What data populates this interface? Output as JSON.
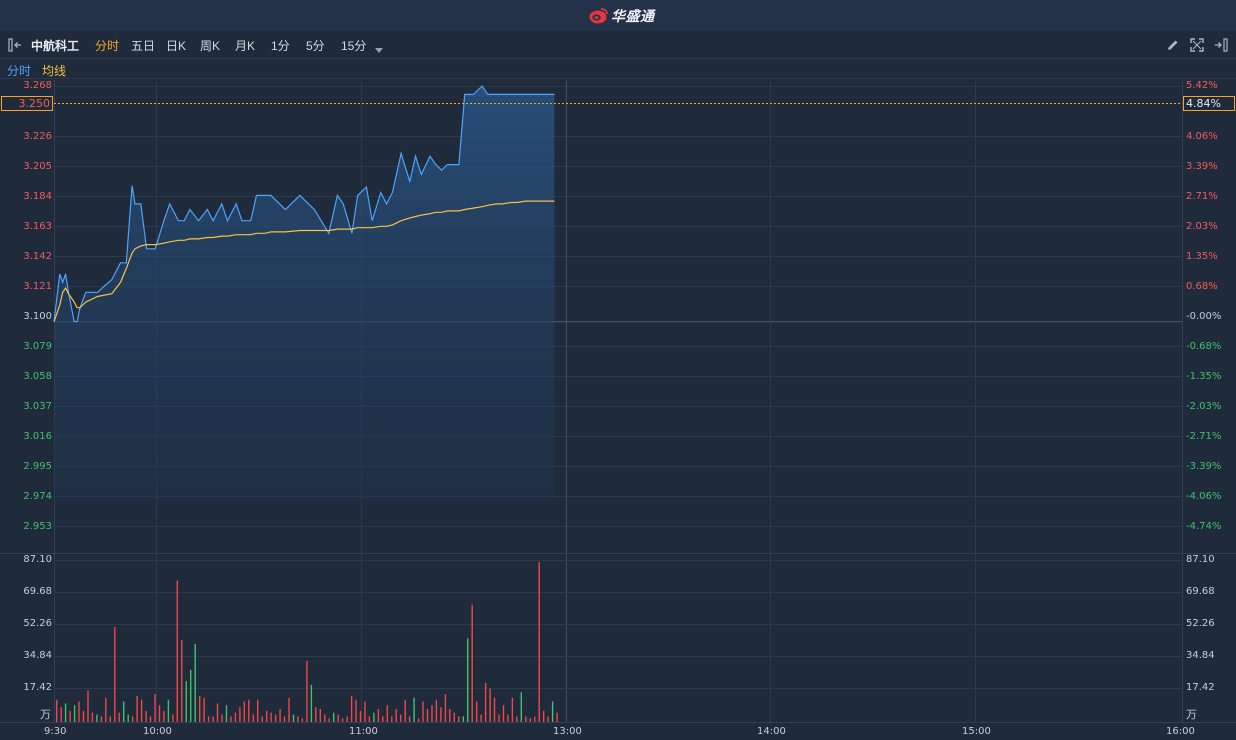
{
  "brand": {
    "name": "华盛通"
  },
  "toolbar": {
    "stock_name": "中航科工",
    "tabs": [
      {
        "label": "分时",
        "active": true
      },
      {
        "label": "五日",
        "active": false
      },
      {
        "label": "日K",
        "active": false
      },
      {
        "label": "周K",
        "active": false
      },
      {
        "label": "月K",
        "active": false
      },
      {
        "label": "1分",
        "active": false
      },
      {
        "label": "5分",
        "active": false
      },
      {
        "label": "15分",
        "active": false
      }
    ]
  },
  "legend": {
    "intraday": "分时",
    "avg": "均线",
    "intraday_color": "#4da3ff",
    "avg_color": "#f6c342"
  },
  "crosshair": {
    "price": "3.250",
    "pct": "4.84%"
  },
  "price_axis": {
    "left": [
      "3.268",
      "3.226",
      "3.205",
      "3.184",
      "3.163",
      "3.142",
      "3.121",
      "3.100",
      "3.079",
      "3.058",
      "3.037",
      "3.016",
      "2.995",
      "2.974",
      "2.953"
    ],
    "right": [
      "5.42%",
      "4.06%",
      "3.39%",
      "2.71%",
      "2.03%",
      "1.35%",
      "0.68%",
      "-0.00%",
      "-0.68%",
      "-1.35%",
      "-2.03%",
      "-2.71%",
      "-3.39%",
      "-4.06%",
      "-4.74%"
    ]
  },
  "volume_axis": {
    "labels": [
      "87.10",
      "69.68",
      "52.26",
      "34.84",
      "17.42"
    ],
    "unit": "万"
  },
  "time_axis": [
    "9:30",
    "10:00",
    "11:00",
    "13:00",
    "14:00",
    "15:00",
    "16:00"
  ],
  "chart_data": {
    "type": "line",
    "title": "",
    "prev_close": 3.1,
    "ylim": [
      2.953,
      3.268
    ],
    "volume_ylim": [
      0,
      87.1
    ],
    "x": [
      "09:30",
      "09:32",
      "09:33",
      "09:34",
      "09:35",
      "09:37",
      "09:38",
      "09:39",
      "09:41",
      "09:43",
      "09:45",
      "09:50",
      "09:53",
      "09:55",
      "09:57",
      "09:58",
      "10:00",
      "10:02",
      "10:05",
      "10:08",
      "10:10",
      "10:13",
      "10:15",
      "10:17",
      "10:20",
      "10:23",
      "10:25",
      "10:28",
      "10:30",
      "10:33",
      "10:35",
      "10:38",
      "10:40",
      "10:43",
      "10:45",
      "10:50",
      "10:55",
      "11:00",
      "11:05",
      "11:08",
      "11:10",
      "11:13",
      "11:15",
      "11:18",
      "11:20",
      "11:23",
      "11:25",
      "11:27",
      "11:30",
      "11:33",
      "11:35",
      "11:37",
      "11:40",
      "11:42",
      "11:44",
      "11:46",
      "11:48",
      "11:50",
      "11:52",
      "11:55",
      "11:58",
      "12:00",
      "12:03",
      "12:05",
      "12:08",
      "12:10",
      "12:13",
      "12:15",
      "12:17",
      "12:20",
      "12:23"
    ],
    "series": [
      {
        "name": "分时",
        "values": [
          3.1,
          3.134,
          3.128,
          3.134,
          3.121,
          3.1,
          3.1,
          3.11,
          3.121,
          3.121,
          3.121,
          3.13,
          3.142,
          3.142,
          3.197,
          3.184,
          3.184,
          3.152,
          3.152,
          3.172,
          3.184,
          3.172,
          3.172,
          3.18,
          3.172,
          3.18,
          3.172,
          3.184,
          3.172,
          3.184,
          3.172,
          3.172,
          3.19,
          3.19,
          3.19,
          3.18,
          3.19,
          3.18,
          3.163,
          3.19,
          3.184,
          3.163,
          3.19,
          3.196,
          3.172,
          3.192,
          3.184,
          3.192,
          3.22,
          3.2,
          3.218,
          3.205,
          3.218,
          3.212,
          3.208,
          3.212,
          3.212,
          3.212,
          3.262,
          3.262,
          3.268,
          3.262,
          3.262,
          3.262,
          3.262,
          3.262,
          3.262,
          3.262,
          3.262,
          3.262,
          3.262
        ]
      },
      {
        "name": "均线",
        "values": [
          3.1,
          3.112,
          3.121,
          3.124,
          3.12,
          3.114,
          3.11,
          3.11,
          3.114,
          3.116,
          3.118,
          3.12,
          3.128,
          3.138,
          3.149,
          3.152,
          3.154,
          3.155,
          3.155,
          3.156,
          3.157,
          3.158,
          3.158,
          3.159,
          3.159,
          3.16,
          3.16,
          3.161,
          3.161,
          3.162,
          3.162,
          3.162,
          3.163,
          3.163,
          3.164,
          3.164,
          3.165,
          3.165,
          3.165,
          3.166,
          3.166,
          3.166,
          3.167,
          3.167,
          3.167,
          3.168,
          3.168,
          3.169,
          3.172,
          3.174,
          3.175,
          3.176,
          3.177,
          3.178,
          3.178,
          3.179,
          3.179,
          3.179,
          3.18,
          3.181,
          3.182,
          3.183,
          3.184,
          3.184,
          3.185,
          3.185,
          3.186,
          3.186,
          3.186,
          3.186,
          3.186
        ]
      }
    ],
    "volume": [
      {
        "v": 12,
        "c": "r"
      },
      {
        "v": 8,
        "c": "r"
      },
      {
        "v": 10,
        "c": "g"
      },
      {
        "v": 6,
        "c": "r"
      },
      {
        "v": 9,
        "c": "g"
      },
      {
        "v": 11,
        "c": "r"
      },
      {
        "v": 6,
        "c": "r"
      },
      {
        "v": 17,
        "c": "r"
      },
      {
        "v": 5,
        "c": "r"
      },
      {
        "v": 4,
        "c": "g"
      },
      {
        "v": 3,
        "c": "r"
      },
      {
        "v": 13,
        "c": "r"
      },
      {
        "v": 3,
        "c": "r"
      },
      {
        "v": 51,
        "c": "r"
      },
      {
        "v": 5,
        "c": "r"
      },
      {
        "v": 11,
        "c": "g"
      },
      {
        "v": 4,
        "c": "g"
      },
      {
        "v": 3,
        "c": "r"
      },
      {
        "v": 14,
        "c": "r"
      },
      {
        "v": 12,
        "c": "r"
      },
      {
        "v": 6,
        "c": "r"
      },
      {
        "v": 3,
        "c": "r"
      },
      {
        "v": 15,
        "c": "r"
      },
      {
        "v": 9,
        "c": "r"
      },
      {
        "v": 6,
        "c": "r"
      },
      {
        "v": 12,
        "c": "g"
      },
      {
        "v": 4,
        "c": "r"
      },
      {
        "v": 76,
        "c": "r"
      },
      {
        "v": 44,
        "c": "r"
      },
      {
        "v": 22,
        "c": "g"
      },
      {
        "v": 28,
        "c": "g"
      },
      {
        "v": 42,
        "c": "g"
      },
      {
        "v": 14,
        "c": "r"
      },
      {
        "v": 13,
        "c": "r"
      },
      {
        "v": 3,
        "c": "r"
      },
      {
        "v": 3,
        "c": "r"
      },
      {
        "v": 10,
        "c": "r"
      },
      {
        "v": 4,
        "c": "r"
      },
      {
        "v": 9,
        "c": "g"
      },
      {
        "v": 3,
        "c": "r"
      },
      {
        "v": 5,
        "c": "r"
      },
      {
        "v": 8,
        "c": "r"
      },
      {
        "v": 11,
        "c": "r"
      },
      {
        "v": 12,
        "c": "r"
      },
      {
        "v": 4,
        "c": "r"
      },
      {
        "v": 12,
        "c": "r"
      },
      {
        "v": 3,
        "c": "r"
      },
      {
        "v": 6,
        "c": "r"
      },
      {
        "v": 5,
        "c": "r"
      },
      {
        "v": 4,
        "c": "r"
      },
      {
        "v": 7,
        "c": "r"
      },
      {
        "v": 3,
        "c": "r"
      },
      {
        "v": 13,
        "c": "r"
      },
      {
        "v": 4,
        "c": "g"
      },
      {
        "v": 3,
        "c": "r"
      },
      {
        "v": 2,
        "c": "r"
      },
      {
        "v": 33,
        "c": "r"
      },
      {
        "v": 20,
        "c": "g"
      },
      {
        "v": 8,
        "c": "r"
      },
      {
        "v": 7,
        "c": "r"
      },
      {
        "v": 4,
        "c": "r"
      },
      {
        "v": 2,
        "c": "r"
      },
      {
        "v": 5,
        "c": "g"
      },
      {
        "v": 4,
        "c": "r"
      },
      {
        "v": 2,
        "c": "r"
      },
      {
        "v": 3,
        "c": "r"
      },
      {
        "v": 14,
        "c": "r"
      },
      {
        "v": 12,
        "c": "r"
      },
      {
        "v": 6,
        "c": "r"
      },
      {
        "v": 11,
        "c": "r"
      },
      {
        "v": 3,
        "c": "r"
      },
      {
        "v": 5,
        "c": "g"
      },
      {
        "v": 7,
        "c": "r"
      },
      {
        "v": 3,
        "c": "r"
      },
      {
        "v": 9,
        "c": "r"
      },
      {
        "v": 3,
        "c": "r"
      },
      {
        "v": 7,
        "c": "r"
      },
      {
        "v": 4,
        "c": "r"
      },
      {
        "v": 12,
        "c": "r"
      },
      {
        "v": 3,
        "c": "r"
      },
      {
        "v": 13,
        "c": "g"
      },
      {
        "v": 2,
        "c": "r"
      },
      {
        "v": 11,
        "c": "r"
      },
      {
        "v": 7,
        "c": "r"
      },
      {
        "v": 9,
        "c": "r"
      },
      {
        "v": 12,
        "c": "r"
      },
      {
        "v": 8,
        "c": "r"
      },
      {
        "v": 15,
        "c": "r"
      },
      {
        "v": 7,
        "c": "r"
      },
      {
        "v": 5,
        "c": "r"
      },
      {
        "v": 3,
        "c": "r"
      },
      {
        "v": 3,
        "c": "g"
      },
      {
        "v": 45,
        "c": "g"
      },
      {
        "v": 63,
        "c": "r"
      },
      {
        "v": 11,
        "c": "r"
      },
      {
        "v": 4,
        "c": "r"
      },
      {
        "v": 21,
        "c": "r"
      },
      {
        "v": 18,
        "c": "r"
      },
      {
        "v": 13,
        "c": "r"
      },
      {
        "v": 4,
        "c": "r"
      },
      {
        "v": 9,
        "c": "r"
      },
      {
        "v": 4,
        "c": "r"
      },
      {
        "v": 13,
        "c": "r"
      },
      {
        "v": 3,
        "c": "r"
      },
      {
        "v": 16,
        "c": "g"
      },
      {
        "v": 3,
        "c": "r"
      },
      {
        "v": 2,
        "c": "r"
      },
      {
        "v": 3,
        "c": "r"
      },
      {
        "v": 86,
        "c": "r"
      },
      {
        "v": 6,
        "c": "r"
      },
      {
        "v": 3,
        "c": "r"
      },
      {
        "v": 11,
        "c": "g"
      },
      {
        "v": 5,
        "c": "r"
      }
    ]
  }
}
